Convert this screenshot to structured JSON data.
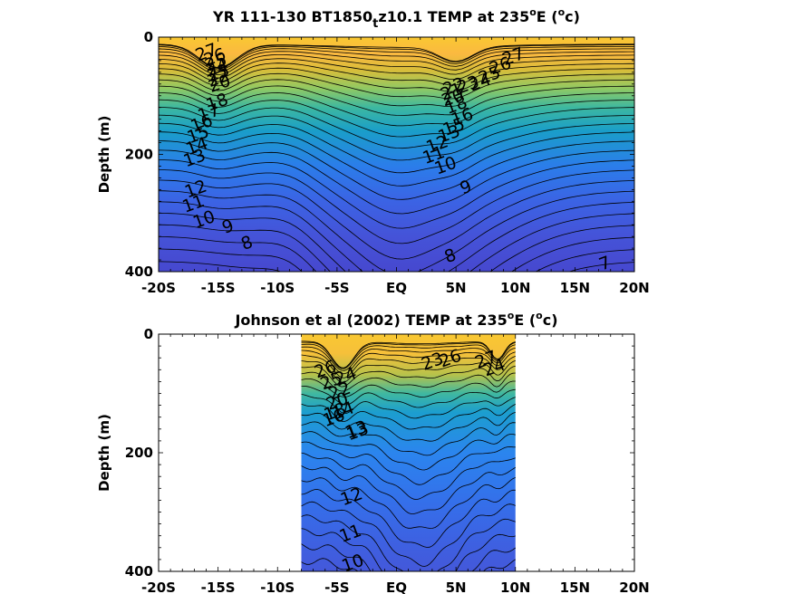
{
  "chart_data": [
    {
      "type": "contour",
      "title_main": "YR 111-130 BT1850",
      "title_sub": "t",
      "title_rest": "z10.1 TEMP at 235",
      "title_sup": "o",
      "title_unit_prefix": "E (",
      "title_unit_sup": "o",
      "title_unit_suffix": "c)",
      "xlabel": "",
      "ylabel": "Depth (m)",
      "x_ticks": [
        -20,
        -15,
        -10,
        -5,
        0,
        5,
        10,
        15,
        20
      ],
      "x_tick_labels": [
        "-20S",
        "-15S",
        "-10S",
        "-5S",
        "EQ",
        "5N",
        "10N",
        "15N",
        "20N"
      ],
      "y_ticks": [
        0,
        200,
        400
      ],
      "y_tick_labels": [
        "0",
        "200",
        "400"
      ],
      "xlim": [
        -20,
        20
      ],
      "ylim": [
        400,
        0
      ],
      "data_xlim": [
        -20,
        20
      ],
      "colormap": "parula",
      "contour_labels": [
        {
          "text": "27",
          "x": -16.0,
          "y": 25
        },
        {
          "text": "26",
          "x": -15.3,
          "y": 33
        },
        {
          "text": "25",
          "x": -15.2,
          "y": 42
        },
        {
          "text": "24",
          "x": -15.1,
          "y": 51
        },
        {
          "text": "23",
          "x": -15.0,
          "y": 60
        },
        {
          "text": "22",
          "x": -15.0,
          "y": 69
        },
        {
          "text": "20",
          "x": -14.9,
          "y": 78
        },
        {
          "text": "18",
          "x": -15.1,
          "y": 110
        },
        {
          "text": "17",
          "x": -15.8,
          "y": 128
        },
        {
          "text": "16",
          "x": -16.4,
          "y": 146
        },
        {
          "text": "15",
          "x": -16.7,
          "y": 165
        },
        {
          "text": "14",
          "x": -16.8,
          "y": 185
        },
        {
          "text": "13",
          "x": -17.0,
          "y": 205
        },
        {
          "text": "12",
          "x": -16.9,
          "y": 258
        },
        {
          "text": "11",
          "x": -17.1,
          "y": 283
        },
        {
          "text": "10",
          "x": -16.2,
          "y": 310
        },
        {
          "text": "9",
          "x": -14.2,
          "y": 322
        },
        {
          "text": "8",
          "x": -12.6,
          "y": 350
        },
        {
          "text": "27",
          "x": 9.8,
          "y": 32
        },
        {
          "text": "26",
          "x": 8.7,
          "y": 48
        },
        {
          "text": "25",
          "x": 7.8,
          "y": 64
        },
        {
          "text": "24",
          "x": 7.0,
          "y": 76
        },
        {
          "text": "23",
          "x": 6.0,
          "y": 80
        },
        {
          "text": "22",
          "x": 4.8,
          "y": 83
        },
        {
          "text": "21",
          "x": 4.6,
          "y": 92
        },
        {
          "text": "20",
          "x": 4.7,
          "y": 102
        },
        {
          "text": "18",
          "x": 5.0,
          "y": 115
        },
        {
          "text": "16",
          "x": 5.5,
          "y": 135
        },
        {
          "text": "15",
          "x": 4.8,
          "y": 152
        },
        {
          "text": "13",
          "x": 4.4,
          "y": 164
        },
        {
          "text": "12",
          "x": 3.4,
          "y": 182
        },
        {
          "text": "11",
          "x": 3.1,
          "y": 200
        },
        {
          "text": "10",
          "x": 4.1,
          "y": 218
        },
        {
          "text": "9",
          "x": 5.8,
          "y": 255
        },
        {
          "text": "8",
          "x": 4.5,
          "y": 372
        },
        {
          "text": "7",
          "x": 17.5,
          "y": 385
        }
      ]
    },
    {
      "type": "contour",
      "title_main": "Johnson et al (2002) TEMP at 235",
      "title_sup": "o",
      "title_unit_prefix": "E (",
      "title_unit_sup": "o",
      "title_unit_suffix": "c)",
      "xlabel": "",
      "ylabel": "Depth (m)",
      "x_ticks": [
        -20,
        -15,
        -10,
        -5,
        0,
        5,
        10,
        15,
        20
      ],
      "x_tick_labels": [
        "-20S",
        "-15S",
        "-10S",
        "-5S",
        "EQ",
        "5N",
        "10N",
        "15N",
        "20N"
      ],
      "y_ticks": [
        0,
        200,
        400
      ],
      "y_tick_labels": [
        "0",
        "200",
        "400"
      ],
      "xlim": [
        -20,
        20
      ],
      "ylim": [
        400,
        0
      ],
      "data_xlim": [
        -8,
        10
      ],
      "colormap": "parula",
      "contour_labels": [
        {
          "text": "26",
          "x": -6.0,
          "y": 58
        },
        {
          "text": "25",
          "x": -5.5,
          "y": 78
        },
        {
          "text": "24",
          "x": -4.3,
          "y": 70
        },
        {
          "text": "22",
          "x": -4.8,
          "y": 95
        },
        {
          "text": "20",
          "x": -5.0,
          "y": 112
        },
        {
          "text": "18",
          "x": -5.2,
          "y": 130
        },
        {
          "text": "16",
          "x": -5.3,
          "y": 140
        },
        {
          "text": "14",
          "x": -4.5,
          "y": 128
        },
        {
          "text": "13",
          "x": -3.4,
          "y": 160
        },
        {
          "text": "26",
          "x": 4.5,
          "y": 40
        },
        {
          "text": "23",
          "x": 3.0,
          "y": 45
        },
        {
          "text": "27",
          "x": 7.5,
          "y": 42
        },
        {
          "text": "24",
          "x": 8.2,
          "y": 55
        },
        {
          "text": "13",
          "x": -3.3,
          "y": 163
        },
        {
          "text": "12",
          "x": -3.8,
          "y": 273
        },
        {
          "text": "11",
          "x": -3.9,
          "y": 335
        },
        {
          "text": "10",
          "x": -3.7,
          "y": 385
        }
      ]
    }
  ]
}
